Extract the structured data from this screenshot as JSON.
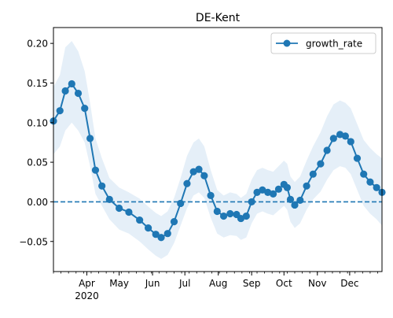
{
  "chart_data": {
    "type": "line",
    "title": "DE-Kent",
    "xlabel": "",
    "ylabel": "",
    "legend": {
      "location": "top-right",
      "entries": [
        "growth_rate"
      ]
    },
    "x_axis": {
      "type": "date",
      "range": [
        "2020-03-01",
        "2020-12-31"
      ],
      "ticks": [
        {
          "date": "2020-04-01",
          "label": "Apr"
        },
        {
          "date": "2020-05-01",
          "label": "May"
        },
        {
          "date": "2020-06-01",
          "label": "Jun"
        },
        {
          "date": "2020-07-01",
          "label": "Jul"
        },
        {
          "date": "2020-08-01",
          "label": "Aug"
        },
        {
          "date": "2020-09-01",
          "label": "Sep"
        },
        {
          "date": "2020-10-01",
          "label": "Oct"
        },
        {
          "date": "2020-11-01",
          "label": "Nov"
        },
        {
          "date": "2020-12-01",
          "label": "Dec"
        }
      ],
      "year_label": "2020"
    },
    "y_axis": {
      "range": [
        -0.088,
        0.22
      ],
      "ticks": [
        -0.05,
        0.0,
        0.05,
        0.1,
        0.15,
        0.2
      ],
      "tick_labels": [
        "−0.05",
        "0.00",
        "0.05",
        "0.10",
        "0.15",
        "0.20"
      ]
    },
    "reference_line": {
      "y": 0.0,
      "style": "dashed"
    },
    "grid": false,
    "colors": {
      "line": "#1f77b4",
      "band": "#c6dbef"
    },
    "series": [
      {
        "name": "growth_rate",
        "points": [
          {
            "x": "2020-03-01",
            "y": 0.102,
            "lo": 0.06,
            "hi": 0.145
          },
          {
            "x": "2020-03-07",
            "y": 0.115,
            "lo": 0.07,
            "hi": 0.16
          },
          {
            "x": "2020-03-12",
            "y": 0.14,
            "lo": 0.09,
            "hi": 0.195
          },
          {
            "x": "2020-03-18",
            "y": 0.149,
            "lo": 0.1,
            "hi": 0.203
          },
          {
            "x": "2020-03-24",
            "y": 0.137,
            "lo": 0.09,
            "hi": 0.19
          },
          {
            "x": "2020-03-30",
            "y": 0.118,
            "lo": 0.075,
            "hi": 0.165
          },
          {
            "x": "2020-04-04",
            "y": 0.08,
            "lo": 0.045,
            "hi": 0.125
          },
          {
            "x": "2020-04-09",
            "y": 0.04,
            "lo": 0.01,
            "hi": 0.08
          },
          {
            "x": "2020-04-15",
            "y": 0.02,
            "lo": -0.005,
            "hi": 0.055
          },
          {
            "x": "2020-04-22",
            "y": 0.003,
            "lo": -0.022,
            "hi": 0.03
          },
          {
            "x": "2020-05-01",
            "y": -0.008,
            "lo": -0.035,
            "hi": 0.018
          },
          {
            "x": "2020-05-10",
            "y": -0.013,
            "lo": -0.04,
            "hi": 0.012
          },
          {
            "x": "2020-05-20",
            "y": -0.023,
            "lo": -0.05,
            "hi": 0.004
          },
          {
            "x": "2020-05-28",
            "y": -0.033,
            "lo": -0.06,
            "hi": -0.006
          },
          {
            "x": "2020-06-04",
            "y": -0.041,
            "lo": -0.068,
            "hi": -0.014
          },
          {
            "x": "2020-06-09",
            "y": -0.045,
            "lo": -0.072,
            "hi": -0.018
          },
          {
            "x": "2020-06-15",
            "y": -0.04,
            "lo": -0.067,
            "hi": -0.012
          },
          {
            "x": "2020-06-21",
            "y": -0.025,
            "lo": -0.052,
            "hi": 0.005
          },
          {
            "x": "2020-06-27",
            "y": -0.002,
            "lo": -0.03,
            "hi": 0.03
          },
          {
            "x": "2020-07-03",
            "y": 0.023,
            "lo": -0.008,
            "hi": 0.058
          },
          {
            "x": "2020-07-09",
            "y": 0.038,
            "lo": 0.008,
            "hi": 0.075
          },
          {
            "x": "2020-07-14",
            "y": 0.041,
            "lo": 0.012,
            "hi": 0.08
          },
          {
            "x": "2020-07-19",
            "y": 0.033,
            "lo": 0.005,
            "hi": 0.07
          },
          {
            "x": "2020-07-25",
            "y": 0.008,
            "lo": -0.02,
            "hi": 0.04
          },
          {
            "x": "2020-07-31",
            "y": -0.012,
            "lo": -0.04,
            "hi": 0.015
          },
          {
            "x": "2020-08-06",
            "y": -0.018,
            "lo": -0.045,
            "hi": 0.008
          },
          {
            "x": "2020-08-12",
            "y": -0.015,
            "lo": -0.042,
            "hi": 0.012
          },
          {
            "x": "2020-08-18",
            "y": -0.016,
            "lo": -0.043,
            "hi": 0.01
          },
          {
            "x": "2020-08-22",
            "y": -0.021,
            "lo": -0.048,
            "hi": 0.005
          },
          {
            "x": "2020-08-27",
            "y": -0.018,
            "lo": -0.045,
            "hi": 0.01
          },
          {
            "x": "2020-09-01",
            "y": 0.0,
            "lo": -0.027,
            "hi": 0.028
          },
          {
            "x": "2020-09-06",
            "y": 0.012,
            "lo": -0.015,
            "hi": 0.04
          },
          {
            "x": "2020-09-11",
            "y": 0.015,
            "lo": -0.012,
            "hi": 0.043
          },
          {
            "x": "2020-09-16",
            "y": 0.012,
            "lo": -0.015,
            "hi": 0.04
          },
          {
            "x": "2020-09-21",
            "y": 0.01,
            "lo": -0.017,
            "hi": 0.038
          },
          {
            "x": "2020-09-26",
            "y": 0.016,
            "lo": -0.011,
            "hi": 0.045
          },
          {
            "x": "2020-10-01",
            "y": 0.022,
            "lo": -0.005,
            "hi": 0.052
          },
          {
            "x": "2020-10-04",
            "y": 0.018,
            "lo": -0.01,
            "hi": 0.048
          },
          {
            "x": "2020-10-07",
            "y": 0.003,
            "lo": -0.025,
            "hi": 0.032
          },
          {
            "x": "2020-10-11",
            "y": -0.004,
            "lo": -0.033,
            "hi": 0.025
          },
          {
            "x": "2020-10-16",
            "y": 0.002,
            "lo": -0.027,
            "hi": 0.032
          },
          {
            "x": "2020-10-22",
            "y": 0.02,
            "lo": -0.01,
            "hi": 0.052
          },
          {
            "x": "2020-10-28",
            "y": 0.035,
            "lo": 0.003,
            "hi": 0.07
          },
          {
            "x": "2020-11-04",
            "y": 0.048,
            "lo": 0.013,
            "hi": 0.088
          },
          {
            "x": "2020-11-10",
            "y": 0.065,
            "lo": 0.028,
            "hi": 0.108
          },
          {
            "x": "2020-11-16",
            "y": 0.08,
            "lo": 0.04,
            "hi": 0.123
          },
          {
            "x": "2020-11-22",
            "y": 0.085,
            "lo": 0.045,
            "hi": 0.128
          },
          {
            "x": "2020-11-27",
            "y": 0.083,
            "lo": 0.043,
            "hi": 0.125
          },
          {
            "x": "2020-12-02",
            "y": 0.076,
            "lo": 0.035,
            "hi": 0.118
          },
          {
            "x": "2020-12-08",
            "y": 0.055,
            "lo": 0.015,
            "hi": 0.098
          },
          {
            "x": "2020-12-14",
            "y": 0.035,
            "lo": -0.005,
            "hi": 0.078
          },
          {
            "x": "2020-12-20",
            "y": 0.025,
            "lo": -0.015,
            "hi": 0.068
          },
          {
            "x": "2020-12-26",
            "y": 0.018,
            "lo": -0.022,
            "hi": 0.06
          },
          {
            "x": "2020-12-31",
            "y": 0.012,
            "lo": -0.03,
            "hi": 0.055
          }
        ]
      }
    ]
  }
}
